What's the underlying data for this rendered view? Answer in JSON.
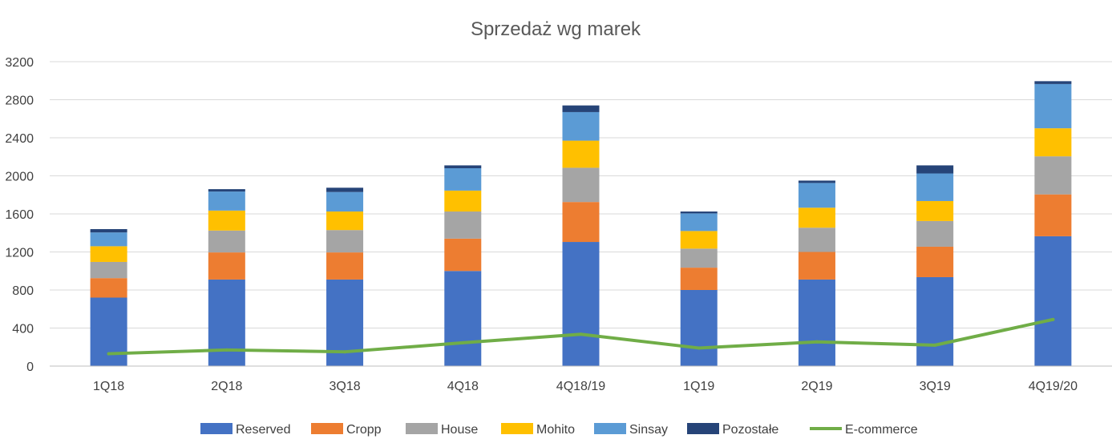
{
  "chart_data": {
    "type": "bar",
    "stacked": true,
    "title": "Sprzedaż wg marek",
    "xlabel": "",
    "ylabel": "",
    "ylim": [
      0,
      3200
    ],
    "yticks": [
      0,
      400,
      800,
      1200,
      1600,
      2000,
      2400,
      2800,
      3200
    ],
    "grid": "horizontal",
    "legend_position": "bottom",
    "categories": [
      "1Q18",
      "2Q18",
      "3Q18",
      "4Q18",
      "4Q18/19",
      "1Q19",
      "2Q19",
      "3Q19",
      "4Q19/20"
    ],
    "series": [
      {
        "name": "Reserved",
        "kind": "bar",
        "color": "#4472C4",
        "values": [
          720,
          910,
          910,
          1000,
          1305,
          800,
          910,
          935,
          1365
        ]
      },
      {
        "name": "Cropp",
        "kind": "bar",
        "color": "#ED7D31",
        "values": [
          205,
          285,
          285,
          340,
          420,
          235,
          290,
          320,
          440
        ]
      },
      {
        "name": "House",
        "kind": "bar",
        "color": "#A5A5A5",
        "values": [
          170,
          230,
          235,
          285,
          360,
          200,
          255,
          270,
          400
        ]
      },
      {
        "name": "Mohito",
        "kind": "bar",
        "color": "#FFC000",
        "values": [
          165,
          210,
          195,
          220,
          285,
          185,
          210,
          210,
          295
        ]
      },
      {
        "name": "Sinsay",
        "kind": "bar",
        "color": "#5B9BD5",
        "values": [
          145,
          200,
          205,
          235,
          300,
          185,
          260,
          290,
          465
        ]
      },
      {
        "name": "Pozostałe",
        "kind": "bar",
        "color": "#264478",
        "values": [
          35,
          25,
          45,
          30,
          70,
          20,
          25,
          85,
          30
        ]
      },
      {
        "name": "E-commerce",
        "kind": "line",
        "color": "#70AD47",
        "values": [
          130,
          170,
          150,
          245,
          335,
          190,
          255,
          220,
          490
        ]
      }
    ]
  }
}
